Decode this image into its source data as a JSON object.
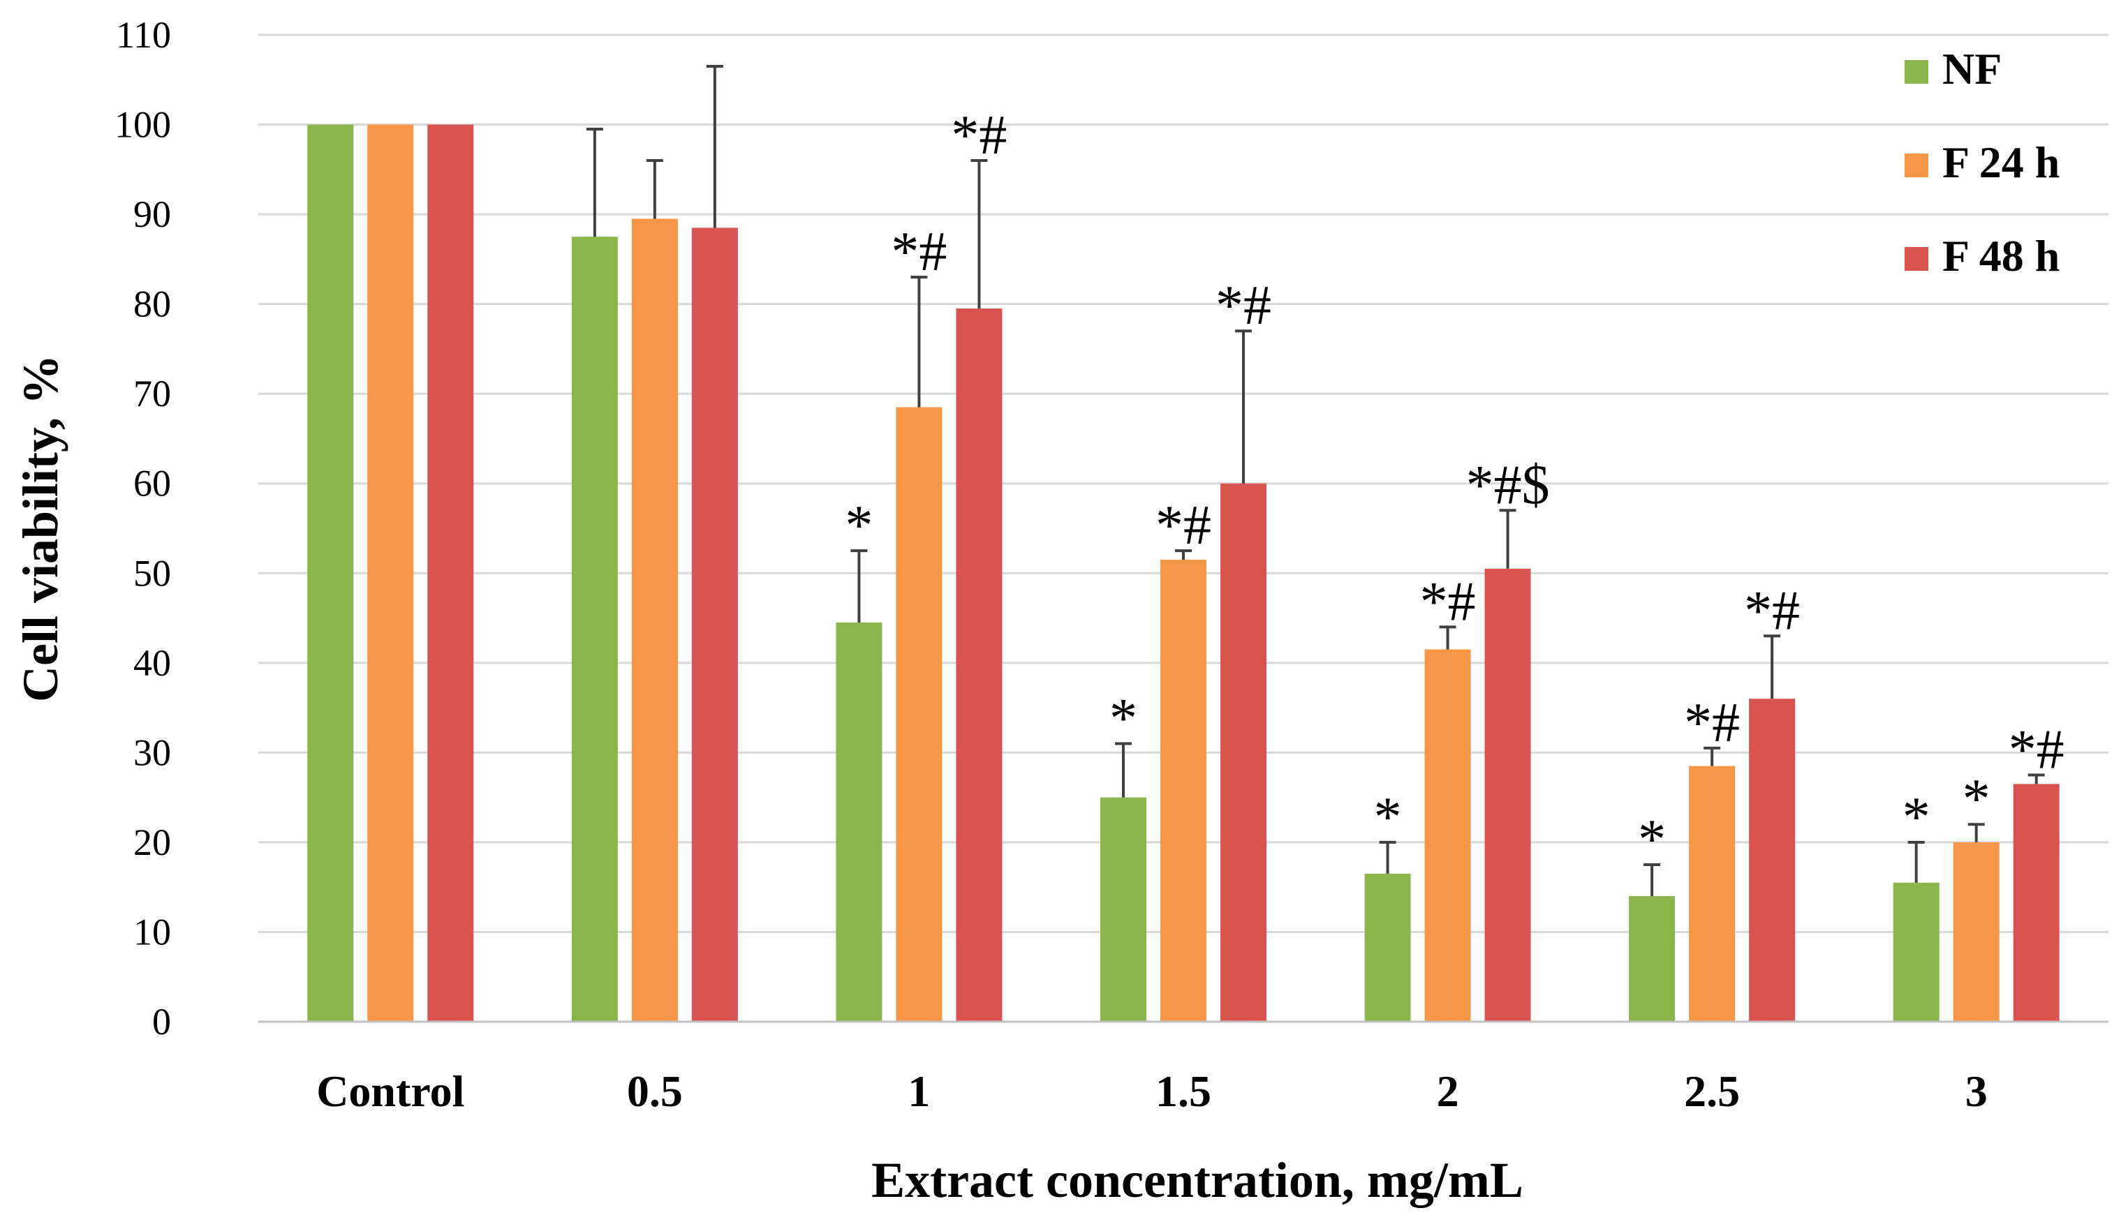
{
  "chart_data": {
    "type": "bar",
    "title": "",
    "xlabel": "Extract concentration, mg/mL",
    "ylabel": "Cell viability, %",
    "ylim": [
      0,
      110
    ],
    "yticks": [
      0,
      10,
      20,
      30,
      40,
      50,
      60,
      70,
      80,
      90,
      100,
      110
    ],
    "grid": true,
    "legend_position": "top-right",
    "categories": [
      "Control",
      "0.5",
      "1",
      "1.5",
      "2",
      "2.5",
      "3"
    ],
    "series": [
      {
        "name": "NF",
        "color": "#8ab64c",
        "values": [
          100,
          87.5,
          44.5,
          25,
          16.5,
          14,
          15.5
        ],
        "errors": [
          0,
          12,
          8,
          6,
          3.5,
          3.5,
          4.5
        ],
        "annotations": [
          "",
          "",
          "*",
          "*",
          "*",
          "*",
          "*"
        ]
      },
      {
        "name": "F 24 h",
        "color": "#f79646",
        "values": [
          100,
          89.5,
          68.5,
          51.5,
          41.5,
          28.5,
          20
        ],
        "errors": [
          0,
          6.5,
          14.5,
          1,
          2.5,
          2,
          2
        ],
        "annotations": [
          "",
          "",
          "*#",
          "*#",
          "*#",
          "*#",
          "*"
        ]
      },
      {
        "name": "F 48 h",
        "color": "#d9534f",
        "values": [
          100,
          88.5,
          79.5,
          60,
          50.5,
          36,
          26.5
        ],
        "errors": [
          0,
          18,
          16.5,
          17,
          6.5,
          7,
          1
        ],
        "annotations": [
          "",
          "",
          "*#",
          "*#",
          "*#$",
          "*#",
          "*#"
        ]
      }
    ]
  }
}
